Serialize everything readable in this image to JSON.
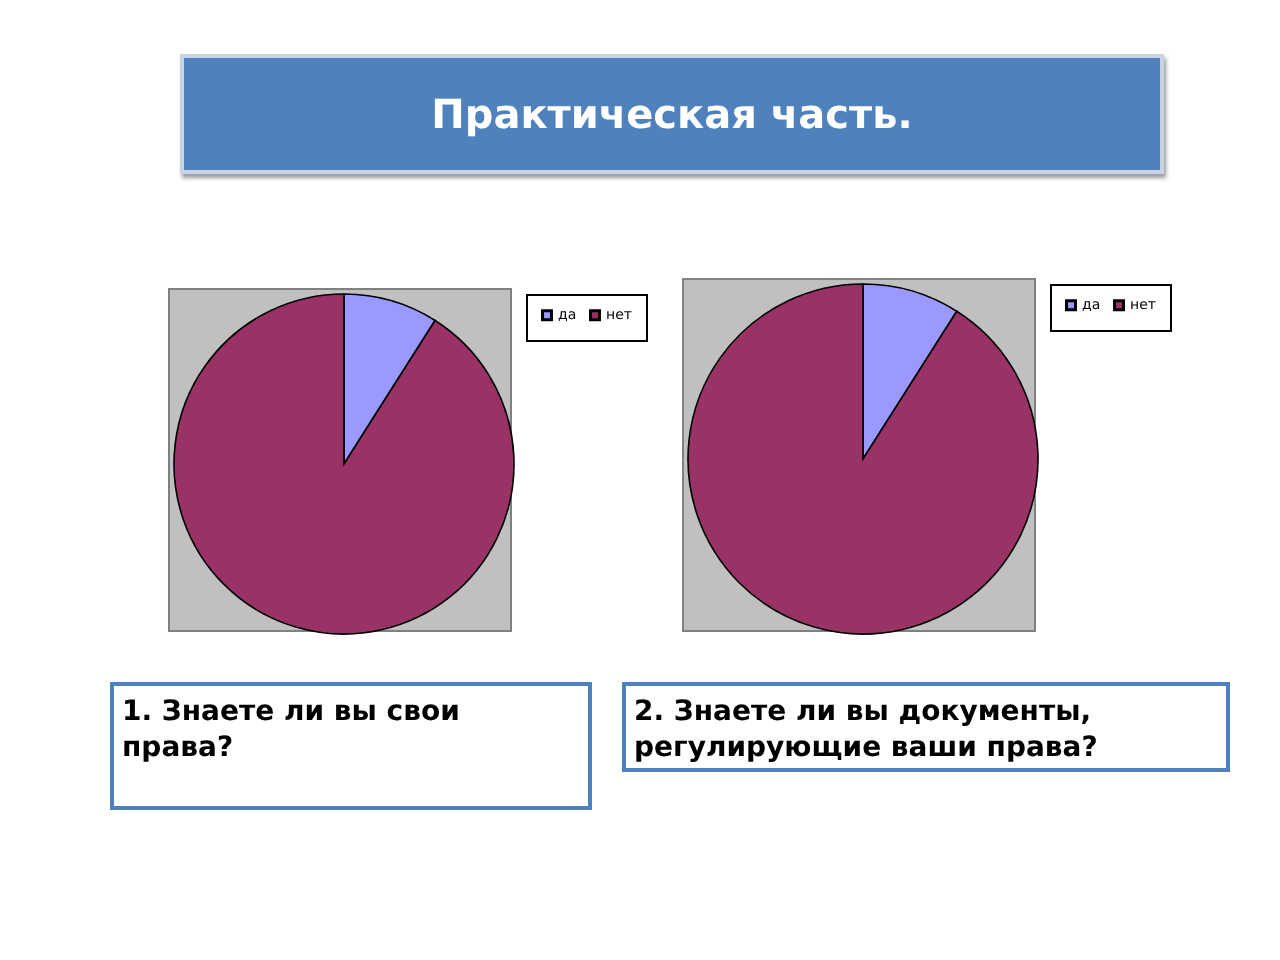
{
  "chart_data": [
    {
      "type": "pie",
      "title": "1. Знаете ли вы свои права?",
      "annotations": [
        "Практическая часть."
      ],
      "categories": [
        "да",
        "нет"
      ],
      "values": [
        9,
        91
      ],
      "colors": [
        "#9999ff",
        "#993366"
      ],
      "legend": "right"
    },
    {
      "type": "pie",
      "title": "2. Знаете ли вы документы, регулирующие ваши права?",
      "categories": [
        "да",
        "нет"
      ],
      "values": [
        9,
        91
      ],
      "colors": [
        "#9999ff",
        "#993366"
      ],
      "legend": "right"
    }
  ]
}
